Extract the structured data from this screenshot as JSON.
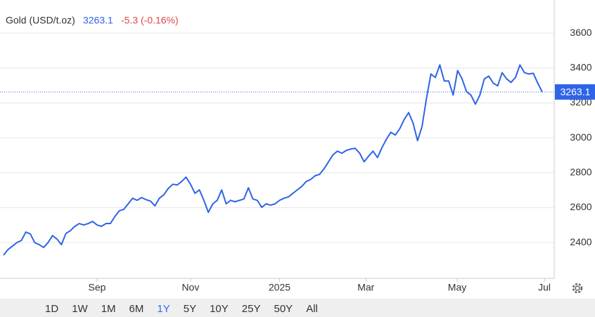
{
  "chart_data": {
    "type": "line",
    "title": "Gold (USD/t.oz)",
    "last_price": 3263.1,
    "change_label": "-5.3 (-0.16%)",
    "series": [
      {
        "name": "Gold",
        "color": "#2e64e6",
        "values": [
          2328,
          2360,
          2380,
          2400,
          2412,
          2460,
          2450,
          2400,
          2388,
          2372,
          2400,
          2440,
          2420,
          2388,
          2452,
          2468,
          2493,
          2509,
          2501,
          2509,
          2521,
          2501,
          2493,
          2509,
          2509,
          2549,
          2582,
          2590,
          2622,
          2654,
          2642,
          2658,
          2646,
          2638,
          2610,
          2654,
          2674,
          2710,
          2734,
          2730,
          2750,
          2775,
          2734,
          2682,
          2702,
          2642,
          2573,
          2622,
          2642,
          2702,
          2622,
          2642,
          2634,
          2642,
          2650,
          2714,
          2650,
          2642,
          2602,
          2622,
          2614,
          2622,
          2642,
          2654,
          2662,
          2682,
          2702,
          2722,
          2750,
          2762,
          2783,
          2791,
          2823,
          2863,
          2903,
          2924,
          2912,
          2928,
          2936,
          2940,
          2912,
          2863,
          2895,
          2924,
          2887,
          2944,
          2992,
          3032,
          3016,
          3052,
          3105,
          3145,
          3084,
          2984,
          3064,
          3225,
          3366,
          3346,
          3418,
          3326,
          3326,
          3245,
          3386,
          3338,
          3265,
          3245,
          3193,
          3245,
          3338,
          3354,
          3314,
          3298,
          3374,
          3338,
          3318,
          3346,
          3418,
          3374,
          3366,
          3370,
          3314,
          3263.1
        ]
      }
    ],
    "xlim": [
      -0.8,
      123.7
    ],
    "xticks": [
      {
        "value": 21,
        "label": "Sep"
      },
      {
        "value": 42,
        "label": "Nov"
      },
      {
        "value": 62,
        "label": "2025"
      },
      {
        "value": 81.4,
        "label": "Mar"
      },
      {
        "value": 101.9,
        "label": "May"
      },
      {
        "value": 121.5,
        "label": "Jul"
      }
    ],
    "ylim": [
      2195,
      3790
    ],
    "yticks": [
      2400,
      2600,
      2800,
      3000,
      3200,
      3400,
      3600
    ],
    "grid": true,
    "ranges": [
      "1D",
      "1W",
      "1M",
      "6M",
      "1Y",
      "5Y",
      "10Y",
      "25Y",
      "50Y",
      "All"
    ],
    "selected_range": "1Y"
  }
}
